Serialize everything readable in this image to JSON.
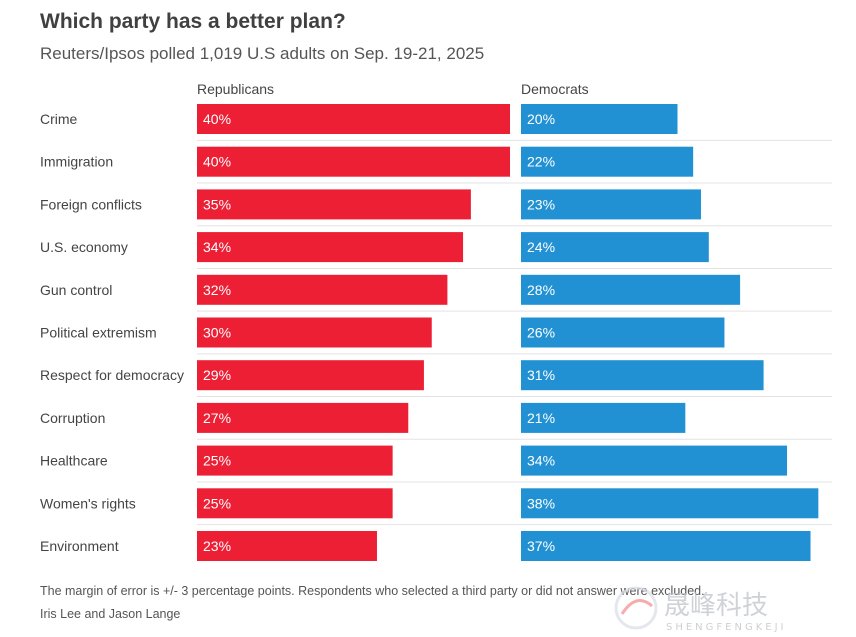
{
  "title": "Which party has a better plan?",
  "subtitle": "Reuters/Ipsos polled 1,019 U.S adults on Sep. 19-21, 2025",
  "footnote": "The margin of error is +/- 3 percentage points. Respondents who selected a third party or did not answer were excluded.",
  "credit": "Iris Lee and Jason Lange",
  "watermark": {
    "cn": "晟峰科技",
    "en": "SHENGFENGKEJI"
  },
  "colors": {
    "republicans": "#ec1f35",
    "democrats": "#2191d3"
  },
  "chart_data": {
    "type": "bar",
    "orientation": "horizontal",
    "value_format": "percent",
    "categories": [
      "Crime",
      "Immigration",
      "Foreign conflicts",
      "U.S. economy",
      "Gun control",
      "Political extremism",
      "Respect for democracy",
      "Corruption",
      "Healthcare",
      "Women's rights",
      "Environment"
    ],
    "series": [
      {
        "name": "Republicans",
        "values": [
          40,
          40,
          35,
          34,
          32,
          30,
          29,
          27,
          25,
          25,
          23
        ]
      },
      {
        "name": "Democrats",
        "values": [
          20,
          22,
          23,
          24,
          28,
          26,
          31,
          21,
          34,
          38,
          37
        ]
      }
    ],
    "xlim": [
      0,
      40
    ],
    "grid": false,
    "legend": "top"
  }
}
